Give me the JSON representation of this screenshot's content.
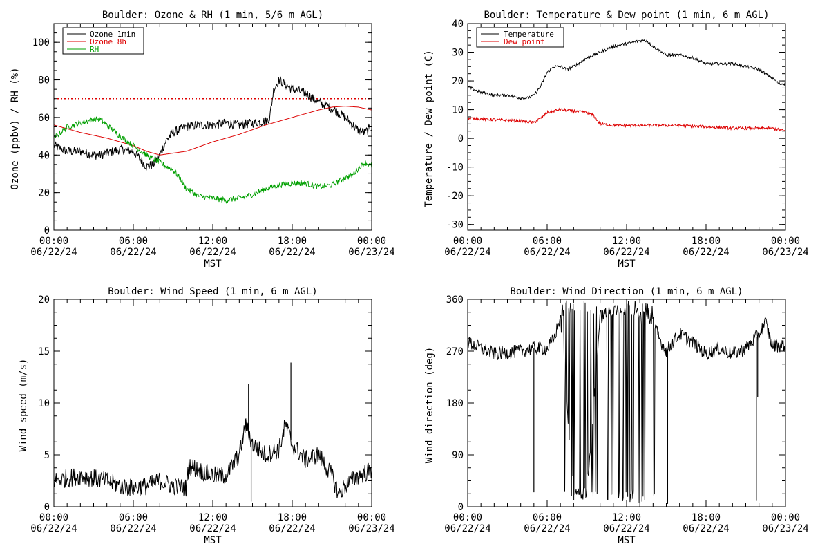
{
  "chart_data": [
    {
      "type": "line",
      "title": "Boulder: Ozone & RH (1 min, 5/6 m AGL)",
      "ylabel": "Ozone (ppbv) / RH (%)",
      "xlabel": "MST",
      "xlim": [
        0,
        24
      ],
      "ylim": [
        0,
        110
      ],
      "yticks": [
        0,
        20,
        40,
        60,
        80,
        100
      ],
      "xticks": [
        {
          "time": "00:00",
          "date": "06/22/24"
        },
        {
          "time": "06:00",
          "date": "06/22/24"
        },
        {
          "time": "12:00",
          "date": "06/22/24"
        },
        {
          "time": "18:00",
          "date": "06/22/24"
        },
        {
          "time": "00:00",
          "date": "06/23/24"
        }
      ],
      "legend": "top-left",
      "reference_lines": [
        {
          "y": 70,
          "color": "#dd0000",
          "style": "dotted"
        }
      ],
      "series": [
        {
          "name": "Ozone 1min",
          "color": "#000000",
          "noise": 2.5,
          "x": [
            0,
            1,
            2,
            3,
            3.5,
            4,
            5,
            6,
            6.5,
            7,
            7.5,
            8,
            8.5,
            9,
            10,
            11,
            12,
            13,
            14,
            15,
            16,
            16.3,
            16.6,
            17,
            18,
            19,
            20,
            21,
            22,
            23,
            23.5,
            24
          ],
          "y": [
            45,
            42,
            42,
            40,
            40,
            41,
            43,
            42,
            38,
            34,
            35,
            40,
            48,
            52,
            55,
            56,
            56,
            57,
            56,
            57,
            58,
            60,
            75,
            80,
            75,
            73,
            68,
            65,
            60,
            53,
            52,
            55
          ]
        },
        {
          "name": "Ozone 8h",
          "color": "#dd0000",
          "noise": 0,
          "x": [
            0,
            2,
            4,
            6,
            7,
            8,
            10,
            12,
            14,
            16,
            18,
            20,
            21,
            22,
            23,
            24
          ],
          "y": [
            56,
            52,
            49,
            45,
            42,
            40,
            42,
            47,
            51,
            56,
            60,
            64,
            65.5,
            66,
            65.5,
            64
          ]
        },
        {
          "name": "RH",
          "color": "#00a000",
          "noise": 1.5,
          "x": [
            0,
            1,
            2,
            3,
            3.5,
            4,
            5,
            6,
            7,
            8,
            9,
            9.5,
            10,
            11,
            12,
            13,
            14,
            15,
            16,
            17,
            18,
            19,
            20,
            21,
            22,
            22.5,
            23,
            23.5,
            24
          ],
          "y": [
            49,
            55,
            57,
            59,
            59,
            56,
            50,
            45,
            40,
            36,
            32,
            28,
            22,
            18,
            17,
            16,
            17,
            19,
            22,
            24,
            25,
            25,
            23,
            24,
            28,
            29,
            33,
            36,
            34
          ]
        }
      ]
    },
    {
      "type": "line",
      "title": "Boulder: Temperature & Dew point (1 min, 6 m AGL)",
      "ylabel": "Temperature / Dew point (C)",
      "xlabel": "MST",
      "xlim": [
        0,
        24
      ],
      "ylim": [
        -32,
        40
      ],
      "yticks": [
        -30,
        -20,
        -10,
        0,
        10,
        20,
        30,
        40
      ],
      "xticks": [
        {
          "time": "00:00",
          "date": "06/22/24"
        },
        {
          "time": "06:00",
          "date": "06/22/24"
        },
        {
          "time": "12:00",
          "date": "06/22/24"
        },
        {
          "time": "18:00",
          "date": "06/22/24"
        },
        {
          "time": "00:00",
          "date": "06/23/24"
        }
      ],
      "legend": "top-left",
      "series": [
        {
          "name": "Temperature",
          "color": "#000000",
          "noise": 0.5,
          "x": [
            0,
            1,
            2,
            3,
            4,
            4.5,
            5,
            5.5,
            6,
            6.5,
            7,
            7.5,
            8,
            9,
            10,
            11,
            12,
            13,
            13.5,
            14,
            15,
            16,
            17,
            18,
            19,
            20,
            21,
            22,
            23,
            23.5,
            24
          ],
          "y": [
            18,
            16,
            15,
            15,
            14,
            14,
            15,
            18,
            23,
            25,
            25,
            24,
            25,
            28,
            30,
            32,
            33,
            34,
            34,
            32,
            29,
            29,
            28,
            26,
            26,
            26,
            25,
            24,
            21,
            19,
            19
          ]
        },
        {
          "name": "Dew point",
          "color": "#dd0000",
          "noise": 0.5,
          "x": [
            0,
            2,
            4,
            5,
            5.5,
            6,
            7,
            8,
            9,
            9.5,
            10,
            11,
            12,
            14,
            16,
            18,
            20,
            22,
            23,
            24
          ],
          "y": [
            7,
            6.5,
            6,
            5.5,
            7,
            9,
            10,
            9.5,
            9,
            8,
            5,
            4.5,
            4.5,
            4.5,
            4.5,
            4,
            3.5,
            3.5,
            3.5,
            2.5
          ]
        }
      ]
    },
    {
      "type": "line",
      "title": "Boulder: Wind Speed (1 min, 6 m AGL)",
      "ylabel": "Wind speed (m/s)",
      "xlabel": "MST",
      "xlim": [
        0,
        24
      ],
      "ylim": [
        0,
        20
      ],
      "yticks": [
        0,
        5,
        10,
        15,
        20
      ],
      "xticks": [
        {
          "time": "00:00",
          "date": "06/22/24"
        },
        {
          "time": "06:00",
          "date": "06/22/24"
        },
        {
          "time": "12:00",
          "date": "06/22/24"
        },
        {
          "time": "18:00",
          "date": "06/22/24"
        },
        {
          "time": "00:00",
          "date": "06/23/24"
        }
      ],
      "series": [
        {
          "name": "",
          "color": "#000000",
          "noise": 0.9,
          "x": [
            0,
            2,
            4,
            5,
            6,
            7,
            8,
            9,
            10,
            10.2,
            11,
            12,
            13,
            14,
            14.5,
            15,
            16,
            17,
            17.5,
            18,
            19,
            20,
            21,
            21.5,
            22,
            23,
            24
          ],
          "y": [
            2.5,
            3,
            2.5,
            2,
            1.8,
            2,
            2.5,
            2,
            1.8,
            4,
            3.5,
            3,
            3,
            5,
            8,
            6,
            5,
            5.5,
            8,
            6,
            4.5,
            5,
            3,
            1.2,
            2,
            3,
            3.5
          ]
        }
      ],
      "spikes": [
        {
          "x": 14.7,
          "y": 11.8
        },
        {
          "x": 17.9,
          "y": 13.9
        },
        {
          "x": 14.9,
          "y": 0.5
        }
      ]
    },
    {
      "type": "line",
      "title": "Boulder: Wind Direction (1 min, 6 m AGL)",
      "ylabel": "Wind direction (deg)",
      "xlabel": "MST",
      "xlim": [
        0,
        24
      ],
      "ylim": [
        0,
        360
      ],
      "yticks": [
        0,
        90,
        180,
        270,
        360
      ],
      "xticks": [
        {
          "time": "00:00",
          "date": "06/22/24"
        },
        {
          "time": "06:00",
          "date": "06/22/24"
        },
        {
          "time": "12:00",
          "date": "06/22/24"
        },
        {
          "time": "18:00",
          "date": "06/22/24"
        },
        {
          "time": "00:00",
          "date": "06/23/24"
        }
      ],
      "series": [
        {
          "name": "",
          "color": "#000000",
          "noise": 12,
          "x": [
            0,
            2,
            4,
            5,
            6,
            6.5,
            7,
            8,
            9,
            10,
            11,
            12,
            13,
            14,
            14.5,
            15,
            16,
            17,
            18,
            19,
            20,
            21,
            22,
            22.5,
            23,
            24
          ],
          "y": [
            285,
            265,
            270,
            275,
            275,
            290,
            330,
            20,
            25,
            330,
            340,
            350,
            330,
            320,
            290,
            270,
            300,
            285,
            265,
            275,
            265,
            275,
            300,
            320,
            280,
            280
          ],
          "wrap": [
            [
              7.0,
              9.8
            ],
            [
              10.3,
              14.2
            ]
          ]
        }
      ],
      "spikes": [
        {
          "x": 5.0,
          "y": 25
        },
        {
          "x": 15.1,
          "y": 5
        },
        {
          "x": 21.8,
          "y": 10
        },
        {
          "x": 21.9,
          "y": 190
        }
      ]
    }
  ]
}
